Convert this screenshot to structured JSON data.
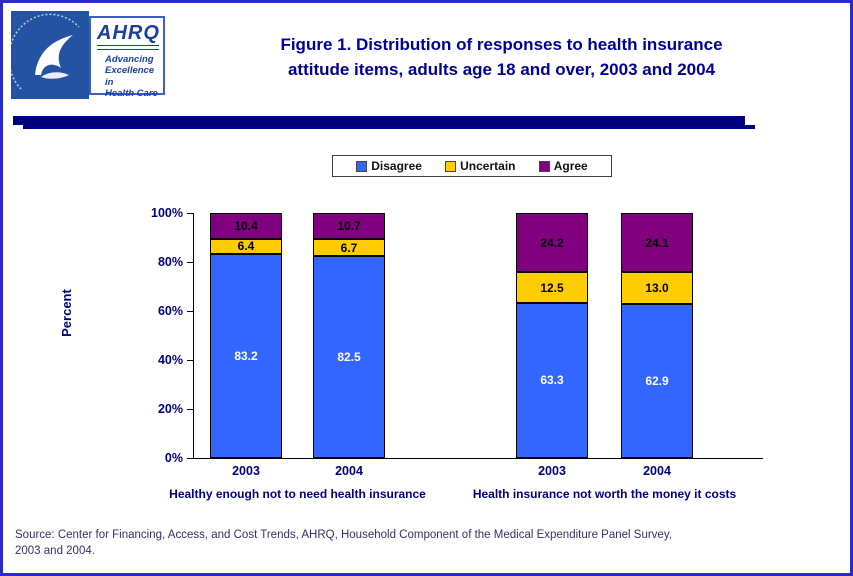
{
  "page": {
    "title_line1": "Figure 1. Distribution of responses to health insurance",
    "title_line2": "attitude items, adults age 18 and over, 2003 and 2004",
    "source_line1": "Source: Center for Financing, Access, and Cost Trends, AHRQ, Household Component of the Medical Expenditure Panel Survey,",
    "source_line2": "2003 and 2004."
  },
  "logo": {
    "name": "AHRQ",
    "tagline1": "Advancing",
    "tagline2": "Excellence in",
    "tagline3": "Health Care"
  },
  "colors": {
    "title": "#000099",
    "navy_bar": "#00007e",
    "page_border": "#2b2bcc"
  },
  "chart_data": {
    "type": "bar",
    "stacked": true,
    "title": "Figure 1. Distribution of responses to health insurance attitude items, adults age 18 and over, 2003 and 2004",
    "xlabel": "",
    "ylabel": "Percent",
    "ylim": [
      0,
      100
    ],
    "ytick_labels": [
      "100%",
      "80%",
      "60%",
      "40%",
      "20%",
      "0%"
    ],
    "legend_position": "top-center",
    "grid": false,
    "legend": [
      {
        "label": "Disagree",
        "color": "#3366FF"
      },
      {
        "label": "Uncertain",
        "color": "#FFCC00"
      },
      {
        "label": "Agree",
        "color": "#800080"
      }
    ],
    "label_colors": [
      "#FFFFFF",
      "#000000",
      "#000000"
    ],
    "groups": [
      {
        "label": "Healthy enough not to need health insurance",
        "bars": [
          {
            "category": "2003",
            "values": [
              83.2,
              6.4,
              10.4
            ],
            "labels": [
              "83.2",
              "6.4",
              "10.4"
            ]
          },
          {
            "category": "2004",
            "values": [
              82.5,
              6.7,
              10.7
            ],
            "labels": [
              "82.5",
              "6.7",
              "10.7"
            ]
          }
        ]
      },
      {
        "label": "Health insurance not worth the money it costs",
        "bars": [
          {
            "category": "2003",
            "values": [
              63.3,
              12.5,
              24.2
            ],
            "labels": [
              "63.3",
              "12.5",
              "24.2"
            ]
          },
          {
            "category": "2004",
            "values": [
              62.9,
              13.0,
              24.1
            ],
            "labels": [
              "62.9",
              "13.0",
              "24.1"
            ]
          }
        ]
      }
    ]
  }
}
